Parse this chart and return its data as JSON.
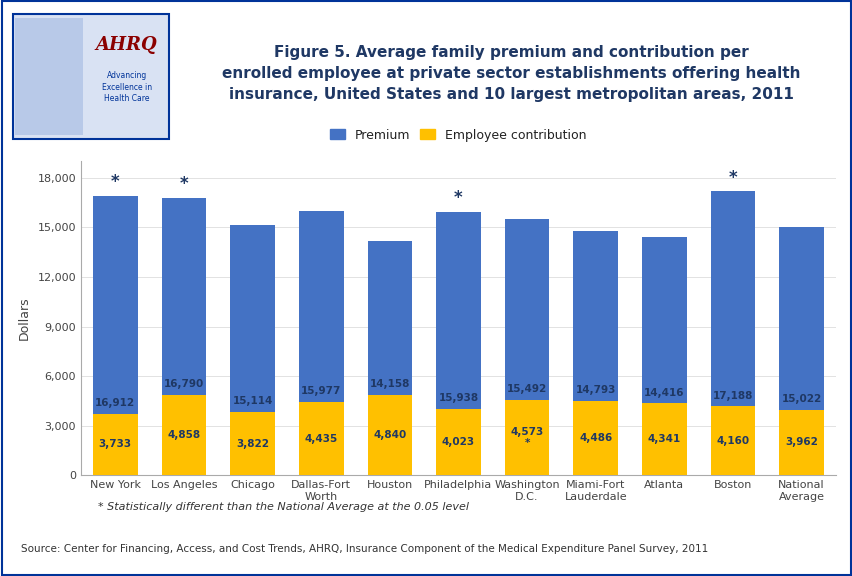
{
  "categories": [
    "New York",
    "Los Angeles",
    "Chicago",
    "Dallas-Fort\nWorth",
    "Houston",
    "Philadelphia",
    "Washington\nD.C.",
    "Miami-Fort\nLauderdale",
    "Atlanta",
    "Boston",
    "National\nAverage"
  ],
  "premium_blue": [
    16912,
    16790,
    15114,
    15977,
    14158,
    15938,
    15492,
    14793,
    14416,
    17188,
    15022
  ],
  "contribution_yellow": [
    3733,
    4858,
    3822,
    4435,
    4840,
    4023,
    4573,
    4486,
    4341,
    4160,
    3962
  ],
  "star_above_bar": [
    true,
    true,
    false,
    false,
    false,
    true,
    false,
    false,
    false,
    true,
    false
  ],
  "star_in_contrib": [
    false,
    false,
    false,
    false,
    false,
    false,
    true,
    false,
    false,
    false,
    false
  ],
  "premium_color": "#4472C4",
  "contribution_color": "#FFC000",
  "bar_width": 0.65,
  "ylim": [
    0,
    19000
  ],
  "yticks": [
    0,
    3000,
    6000,
    9000,
    12000,
    15000,
    18000
  ],
  "ylabel": "Dollars",
  "legend_premium": "Premium",
  "legend_contribution": "Employee contribution",
  "title": "Figure 5. Average family premium and contribution per\nenrolled employee at private sector establishments offering health\ninsurance, United States and 10 largest metropolitan areas, 2011",
  "footnote": "* Statistically different than the National Average at the 0.05 level",
  "source": "Source: Center for Financing, Access, and Cost Trends, AHRQ, Insurance Component of the Medical Expenditure Panel Survey, 2011",
  "navy": "#1F3864",
  "dark_blue_line": "#003399",
  "value_fontsize": 7.5,
  "label_fontsize": 8,
  "ylabel_fontsize": 9,
  "star_fontsize": 12
}
